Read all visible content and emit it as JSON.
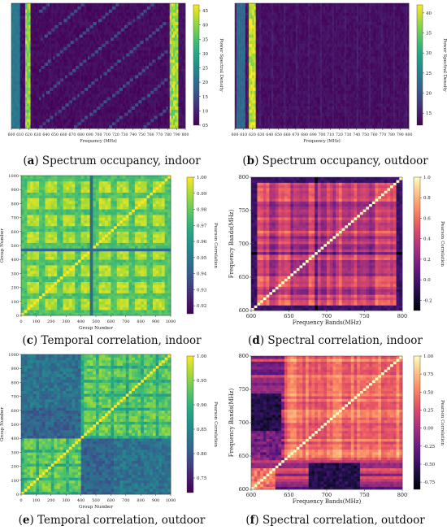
{
  "figure": {
    "panels": [
      {
        "id": "a",
        "letter": "a",
        "caption": "Spectrum occupancy, indoor",
        "chart_data": {
          "type": "heatmap",
          "colormap": "viridis",
          "xlabel": "Frequency (MHz)",
          "ylabel": "",
          "colorbar_label": "Power Spectral Density",
          "x_ticks": [
            "600",
            "610",
            "620",
            "630",
            "640",
            "650",
            "660",
            "670",
            "680",
            "690",
            "700",
            "710",
            "720",
            "730",
            "740",
            "750",
            "760",
            "770",
            "780",
            "790",
            "800"
          ],
          "y_ticks": [],
          "colorbar_ticks": [
            "45",
            "40",
            "35",
            "30",
            "25",
            "20",
            "15",
            "10",
            "05"
          ],
          "colorbar_range": [
            5,
            47
          ],
          "bands": [
            {
              "from_mhz": 600,
              "to_mhz": 610,
              "level": 0.4
            },
            {
              "from_mhz": 617,
              "to_mhz": 622,
              "level": 0.85
            },
            {
              "from_mhz": 783,
              "to_mhz": 793,
              "level": 0.88
            },
            {
              "from_mhz": 622,
              "to_mhz": 783,
              "level": 0.04
            }
          ]
        }
      },
      {
        "id": "b",
        "letter": "b",
        "caption": "Spectrum occupancy, outdoor",
        "chart_data": {
          "type": "heatmap",
          "colormap": "viridis",
          "xlabel": "Frequency (MHz)",
          "ylabel": "",
          "colorbar_label": "Power Spectral Density",
          "x_ticks": [
            "600",
            "610",
            "620",
            "630",
            "640",
            "650",
            "660",
            "670",
            "680",
            "690",
            "700",
            "710",
            "720",
            "730",
            "740",
            "750",
            "760",
            "770",
            "780",
            "790",
            "800"
          ],
          "y_ticks": [],
          "colorbar_ticks": [
            "40",
            "35",
            "30",
            "25",
            "20",
            "15"
          ],
          "colorbar_range": [
            12,
            42
          ],
          "bands": [
            {
              "from_mhz": 603,
              "to_mhz": 612,
              "level": 0.35
            },
            {
              "from_mhz": 617,
              "to_mhz": 624,
              "level": 0.95
            },
            {
              "from_mhz": 624,
              "to_mhz": 800,
              "level": 0.05
            }
          ]
        }
      },
      {
        "id": "c",
        "letter": "c",
        "caption": "Temporal correlation, indoor",
        "chart_data": {
          "type": "heatmap",
          "colormap": "viridis",
          "xlabel": "Group Number",
          "ylabel": "Group Number",
          "colorbar_label": "Pearson Correlation",
          "xlim": [
            0,
            1000
          ],
          "ylim": [
            0,
            1000
          ],
          "x_ticks": [
            "0",
            "100",
            "200",
            "300",
            "400",
            "500",
            "600",
            "700",
            "800",
            "900",
            "1000"
          ],
          "y_ticks": [
            "0",
            "100",
            "200",
            "300",
            "400",
            "500",
            "600",
            "700",
            "800",
            "900",
            "1000"
          ],
          "colorbar_ticks": [
            "1.00",
            "0.99",
            "0.98",
            "0.97",
            "0.96",
            "0.95",
            "0.94",
            "0.93",
            "0.92"
          ],
          "colorbar_range": [
            0.915,
            1.0
          ]
        }
      },
      {
        "id": "d",
        "letter": "d",
        "caption": "Spectral correlation, indoor",
        "chart_data": {
          "type": "heatmap",
          "colormap": "magma",
          "xlabel": "Frequency Bands(MHz)",
          "ylabel": "Frequency Bands(MHz)",
          "colorbar_label": "Pearson Correlation",
          "xlim": [
            600,
            800
          ],
          "ylim": [
            600,
            800
          ],
          "x_ticks": [
            "600",
            "650",
            "700",
            "750",
            "800"
          ],
          "y_ticks": [
            "600",
            "650",
            "700",
            "750",
            "800"
          ],
          "colorbar_ticks": [
            "1.0",
            "0.8",
            "0.6",
            "0.4",
            "0.2",
            "0.0",
            "-0.2"
          ],
          "colorbar_range": [
            -0.3,
            1.0
          ]
        }
      },
      {
        "id": "e",
        "letter": "e",
        "caption": "Temporal correlation, outdoor",
        "chart_data": {
          "type": "heatmap",
          "colormap": "viridis",
          "xlabel": "Group Number",
          "ylabel": "Group Number",
          "colorbar_label": "Pearson Correlation",
          "xlim": [
            0,
            1000
          ],
          "ylim": [
            0,
            1000
          ],
          "x_ticks": [
            "0",
            "100",
            "200",
            "300",
            "400",
            "500",
            "600",
            "700",
            "800",
            "900",
            "1000"
          ],
          "y_ticks": [
            "0",
            "100",
            "200",
            "300",
            "400",
            "500",
            "600",
            "700",
            "800",
            "900",
            "1000"
          ],
          "colorbar_ticks": [
            "1.00",
            "0.95",
            "0.90",
            "0.85",
            "0.80",
            "0.75"
          ],
          "colorbar_range": [
            0.72,
            1.0
          ]
        }
      },
      {
        "id": "f",
        "letter": "f",
        "caption": "Spectral correlation, outdoor",
        "chart_data": {
          "type": "heatmap",
          "colormap": "magma",
          "xlabel": "Frequency Bands(MHz)",
          "ylabel": "Frequency Bands(MHz)",
          "colorbar_label": "Pearson Correlation",
          "xlim": [
            600,
            800
          ],
          "ylim": [
            600,
            800
          ],
          "x_ticks": [
            "600",
            "650",
            "700",
            "750",
            "800"
          ],
          "y_ticks": [
            "600",
            "650",
            "700",
            "750",
            "800"
          ],
          "colorbar_ticks": [
            "1.00",
            "0.75",
            "0.50",
            "0.25",
            "0.00",
            "-0.25",
            "-0.50",
            "-0.75"
          ],
          "colorbar_range": [
            -0.85,
            1.0
          ]
        }
      }
    ]
  }
}
